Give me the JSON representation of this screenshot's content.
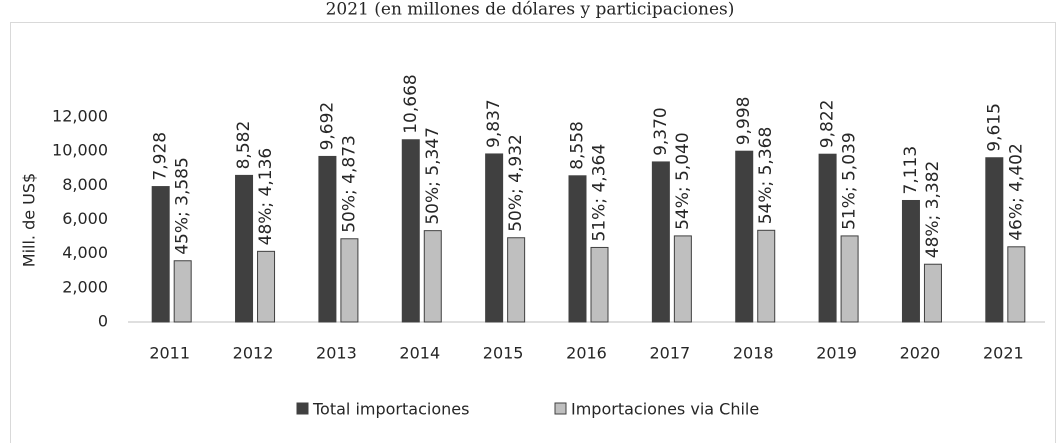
{
  "chart_data": {
    "type": "bar",
    "title": "2021 (en millones de dólares y participaciones)",
    "y_label": "Mill. de US$",
    "categories": [
      "2011",
      "2012",
      "2013",
      "2014",
      "2015",
      "2016",
      "2017",
      "2018",
      "2019",
      "2020",
      "2021"
    ],
    "series": [
      {
        "name": "Total importaciones",
        "color": "#404040",
        "values": [
          7928,
          8582,
          9692,
          10668,
          9837,
          8558,
          9370,
          9998,
          9822,
          7113,
          9615
        ],
        "value_labels": [
          "7,928",
          "8,582",
          "9,692",
          "10,668",
          "9,837",
          "8,558",
          "9,370",
          "9,998",
          "9,822",
          "7,113",
          "9,615"
        ]
      },
      {
        "name": "Importaciones via Chile",
        "color": "#bfbfbf",
        "values": [
          3585,
          4136,
          4873,
          5347,
          4932,
          4364,
          5040,
          5368,
          5039,
          3382,
          4402
        ],
        "value_labels": [
          "45%; 3,585",
          "48%; 4,136",
          "50%; 4,873",
          "50%; 5,347",
          "50%; 4,932",
          "51%; 4,364",
          "54%; 5,040",
          "54%; 5,368",
          "51%; 5,039",
          "48%; 3,382",
          "46%; 4,402"
        ]
      }
    ],
    "ylim": [
      0,
      12000
    ],
    "yticks": [
      0,
      {
        "value": 2000,
        "label": "2,000"
      },
      {
        "value": 4000,
        "label": "4,000"
      },
      {
        "value": 6000,
        "label": "6,000"
      },
      {
        "value": 8000,
        "label": "8,000"
      },
      {
        "value": 10000,
        "label": "10,000"
      },
      {
        "value": 12000,
        "label": "12,000"
      }
    ],
    "legend": "bottom"
  }
}
